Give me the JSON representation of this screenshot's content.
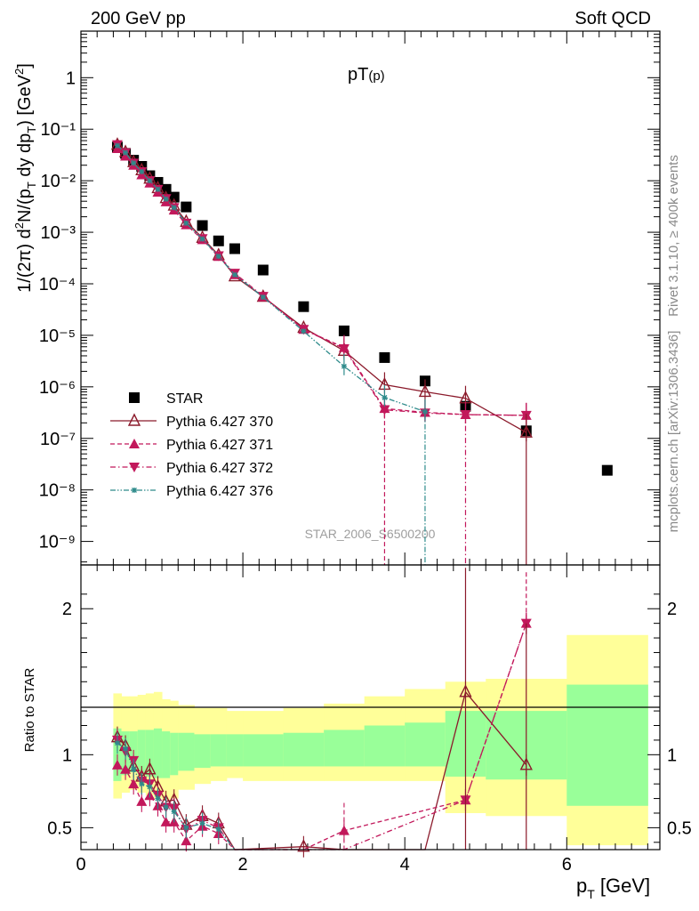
{
  "header": {
    "left": "200 GeV pp",
    "right": "Soft QCD",
    "plot_title": "pT(p)",
    "watermark": "STAR_2006_S6500200",
    "side_rivet": "Rivet 3.1.10, ≥ 400k events",
    "side_mcplots": "mcplots.cern.ch [arXiv:1306.3436]"
  },
  "chart_data": [
    {
      "panel": "main",
      "type": "scatter",
      "ylabel": "1/(2π) d²N/(p_T dy dp_T) [GeV²]",
      "xlabel": "p_T [GeV]",
      "xlim": [
        0,
        7.15
      ],
      "ylim": [
        3.5e-10,
        8
      ],
      "yscale": "log",
      "ytick_labels": [
        "10⁻⁹",
        "10⁻⁸",
        "10⁻⁷",
        "10⁻⁶",
        "10⁻⁵",
        "10⁻⁴",
        "10⁻³",
        "10⁻²",
        "10⁻¹",
        "1"
      ],
      "legend_position": "lower-left",
      "series": [
        {
          "name": "STAR",
          "color": "#000000",
          "marker": "square",
          "x": [
            0.45,
            0.55,
            0.65,
            0.75,
            0.85,
            0.95,
            1.05,
            1.15,
            1.3,
            1.5,
            1.7,
            1.9,
            2.25,
            2.75,
            3.25,
            3.75,
            4.25,
            4.75,
            5.5,
            6.5
          ],
          "y": [
            0.045,
            0.034,
            0.025,
            0.019,
            0.0125,
            0.0093,
            0.0068,
            0.0048,
            0.0031,
            0.00135,
            0.00068,
            0.00048,
            0.000185,
            3.6e-05,
            1.22e-05,
            3.7e-06,
            1.3e-06,
            4.2e-07,
            1.4e-07,
            2.4e-08
          ]
        },
        {
          "name": "Pythia 6.427 370",
          "color": "#8b1a2b",
          "marker": "open-triangle-up",
          "line": "solid",
          "x": [
            0.45,
            0.55,
            0.65,
            0.75,
            0.85,
            0.95,
            1.05,
            1.15,
            1.3,
            1.5,
            1.7,
            1.9,
            2.25,
            2.75,
            3.25,
            3.75,
            4.25,
            4.75,
            5.5
          ],
          "y": [
            0.05,
            0.036,
            0.023,
            0.016,
            0.011,
            0.0072,
            0.0046,
            0.0033,
            0.0016,
            0.00078,
            0.00036,
            0.00014,
            5.6e-05,
            1.4e-05,
            5e-06,
            1.1e-06,
            8e-07,
            6e-07,
            1.3e-07
          ]
        },
        {
          "name": "Pythia 6.427 371",
          "color": "#c2185b",
          "marker": "filled-triangle-up",
          "line": "dashed",
          "x": [
            0.45,
            0.55,
            0.65,
            0.75,
            0.85,
            0.95,
            1.05,
            1.15,
            1.3,
            1.5,
            1.7,
            1.9,
            2.25,
            2.75,
            3.25,
            3.75,
            4.25,
            4.75,
            5.5
          ],
          "y": [
            0.042,
            0.03,
            0.02,
            0.013,
            0.009,
            0.006,
            0.0039,
            0.0027,
            0.0014,
            0.00072,
            0.00034,
            0.00015,
            5.6e-05,
            1.3e-05,
            5.8e-06,
            3.8e-07,
            3.2e-07,
            2.9e-07,
            2.8e-07
          ]
        },
        {
          "name": "Pythia 6.427 372",
          "color": "#c2185b",
          "marker": "filled-triangle-down",
          "line": "dash-dot",
          "x": [
            0.45,
            0.55,
            0.65,
            0.75,
            0.85,
            0.95,
            1.05,
            1.15,
            1.3,
            1.5,
            1.7,
            1.9,
            2.25,
            2.75,
            3.25,
            3.75,
            4.25,
            4.75,
            5.5
          ],
          "y": [
            0.05,
            0.035,
            0.022,
            0.015,
            0.01,
            0.0068,
            0.0045,
            0.003,
            0.0015,
            0.00075,
            0.00035,
            0.00016,
            5.7e-05,
            1.3e-05,
            5.5e-06,
            3.6e-07,
            3.1e-07,
            2.9e-07,
            2.8e-07
          ]
        },
        {
          "name": "Pythia 6.427 376",
          "color": "#2e8b8b",
          "marker": "star",
          "line": "dash-dot-dot",
          "x": [
            0.45,
            0.55,
            0.65,
            0.75,
            0.85,
            0.95,
            1.05,
            1.15,
            1.3,
            1.5,
            1.7,
            1.9,
            2.25,
            2.75,
            3.25,
            3.75,
            4.25
          ],
          "y": [
            0.048,
            0.035,
            0.022,
            0.015,
            0.01,
            0.0068,
            0.0044,
            0.003,
            0.0015,
            0.00074,
            0.00034,
            0.00015,
            5.5e-05,
            1.2e-05,
            2.5e-06,
            6.2e-07,
            3.3e-07
          ]
        }
      ]
    },
    {
      "panel": "ratio",
      "type": "line",
      "ylabel": "Ratio to STAR",
      "xlabel": "p_T [GeV]",
      "xlim": [
        0,
        7.15
      ],
      "ylim": [
        0.35,
        2.3
      ],
      "ytick_labels": [
        "0.5",
        "1",
        "2"
      ],
      "xtick_labels": [
        "0",
        "2",
        "4",
        "6"
      ],
      "bands": {
        "edges": [
          0.4,
          0.5,
          0.6,
          0.7,
          0.8,
          0.9,
          1.0,
          1.1,
          1.2,
          1.4,
          1.6,
          1.8,
          2.0,
          2.5,
          3.0,
          3.5,
          4.0,
          4.5,
          5.0,
          6.0,
          7.0
        ],
        "yellow_low": [
          0.7,
          0.74,
          0.76,
          0.74,
          0.72,
          0.7,
          0.69,
          0.7,
          0.76,
          0.8,
          0.82,
          0.84,
          0.82,
          0.82,
          0.82,
          0.82,
          0.82,
          0.6,
          0.58,
          0.38
        ],
        "yellow_high": [
          1.42,
          1.4,
          1.4,
          1.41,
          1.42,
          1.43,
          1.38,
          1.37,
          1.34,
          1.32,
          1.32,
          1.3,
          1.3,
          1.32,
          1.35,
          1.4,
          1.45,
          1.5,
          1.52,
          1.82
        ],
        "green_low": [
          0.82,
          0.86,
          0.88,
          0.86,
          0.85,
          0.84,
          0.84,
          0.86,
          0.89,
          0.91,
          0.92,
          0.92,
          0.92,
          0.92,
          0.92,
          0.92,
          0.92,
          0.85,
          0.83,
          0.65
        ],
        "green_high": [
          1.18,
          1.16,
          1.16,
          1.17,
          1.17,
          1.18,
          1.16,
          1.15,
          1.15,
          1.14,
          1.14,
          1.14,
          1.14,
          1.15,
          1.17,
          1.2,
          1.22,
          1.3,
          1.3,
          1.48
        ]
      },
      "series": [
        {
          "name": "Pythia 6.427 370",
          "x": [
            0.45,
            0.55,
            0.65,
            0.75,
            0.85,
            0.95,
            1.05,
            1.15,
            1.3,
            1.5,
            1.7,
            1.9,
            2.75,
            3.25,
            4.25,
            4.75,
            5.5
          ],
          "y": [
            1.12,
            1.06,
            0.92,
            0.85,
            0.9,
            0.78,
            0.68,
            0.69,
            0.52,
            0.58,
            0.53,
            0.3,
            0.37,
            0.3,
            0.3,
            1.43,
            0.93
          ]
        },
        {
          "name": "Pythia 6.427 371",
          "x": [
            0.45,
            0.55,
            0.65,
            0.75,
            0.85,
            0.95,
            1.05,
            1.15,
            1.3,
            1.5,
            1.7,
            1.9,
            2.75,
            3.25,
            4.75,
            5.5
          ],
          "y": [
            0.93,
            0.9,
            0.8,
            0.68,
            0.72,
            0.65,
            0.54,
            0.54,
            0.41,
            0.51,
            0.46,
            0.3,
            0.32,
            0.48,
            0.69,
            1.9
          ]
        },
        {
          "name": "Pythia 6.427 372",
          "x": [
            0.45,
            0.55,
            0.65,
            0.75,
            0.85,
            0.95,
            1.05,
            1.15,
            1.3,
            1.5,
            1.7,
            1.9,
            2.75,
            3.25,
            4.75,
            5.5
          ],
          "y": [
            1.1,
            1.02,
            0.96,
            0.82,
            0.8,
            0.72,
            0.64,
            0.63,
            0.49,
            0.55,
            0.5,
            0.3,
            0.32,
            0.3,
            0.69,
            1.9
          ]
        },
        {
          "name": "Pythia 6.427 376",
          "x": [
            0.45,
            0.55,
            0.65,
            0.75,
            0.85,
            0.95,
            1.05,
            1.15,
            1.3,
            1.5,
            1.7,
            1.9
          ],
          "y": [
            1.08,
            1.04,
            0.9,
            0.8,
            0.78,
            0.7,
            0.64,
            0.61,
            0.5,
            0.53,
            0.49,
            0.3
          ]
        }
      ]
    }
  ]
}
